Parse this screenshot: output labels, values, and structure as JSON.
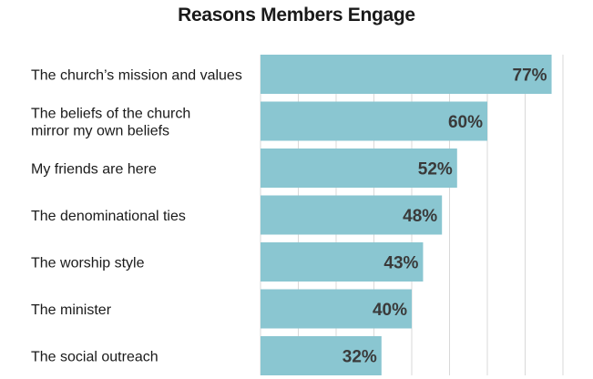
{
  "chart_data": {
    "type": "bar",
    "orientation": "horizontal",
    "title": "Reasons Members Engage",
    "categories": [
      [
        "The church’s mission and values"
      ],
      [
        "The beliefs of the church",
        "mirror my own beliefs"
      ],
      [
        "My friends are here"
      ],
      [
        "The denominational ties"
      ],
      [
        "The worship style"
      ],
      [
        "The minister"
      ],
      [
        "The social outreach"
      ]
    ],
    "values": [
      77,
      60,
      52,
      48,
      43,
      40,
      32
    ],
    "value_labels": [
      "77%",
      "60%",
      "52%",
      "48%",
      "43%",
      "40%",
      "32%"
    ],
    "xlim": [
      0,
      80
    ],
    "grid": true,
    "bar_color": "#8ac6d1",
    "label_color": "#3a3a3a"
  }
}
